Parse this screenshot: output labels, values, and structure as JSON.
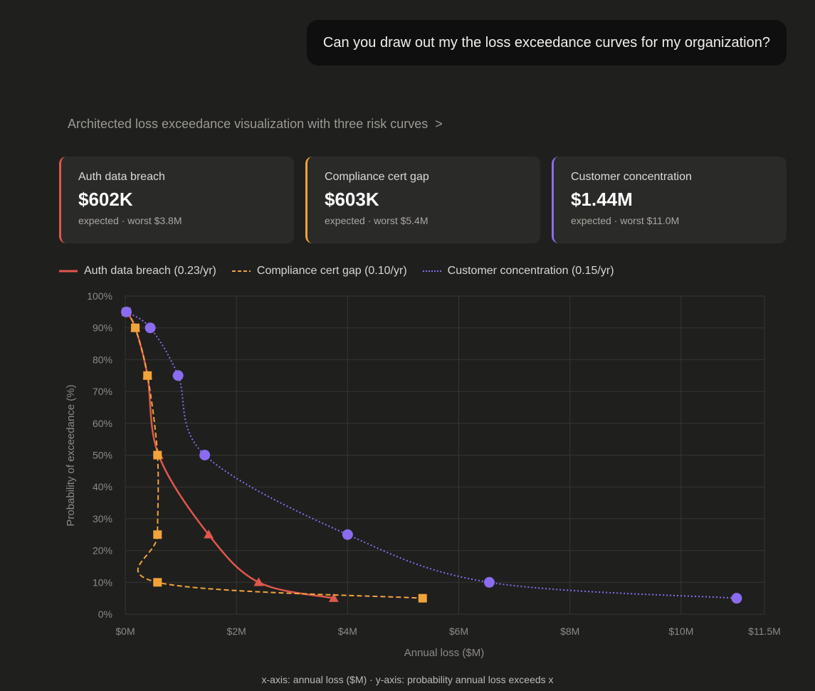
{
  "user_message": "Can you draw out my the loss exceedance curves for my organization?",
  "thinking_summary": "Architected loss exceedance visualization with three risk curves",
  "thinking_chevron": ">",
  "cards": [
    {
      "title": "Auth data breach",
      "value": "$602K",
      "subtitle": "expected · worst $3.8M",
      "color": "#e0574b"
    },
    {
      "title": "Compliance cert gap",
      "value": "$603K",
      "subtitle": "expected · worst $5.4M",
      "color": "#f2a33a"
    },
    {
      "title": "Customer concentration",
      "value": "$1.44M",
      "subtitle": "expected · worst $11.0M",
      "color": "#8b6cf0"
    }
  ],
  "legend": [
    {
      "label": "Auth data breach (0.23/yr)",
      "color": "#e0574b",
      "dash": "solid"
    },
    {
      "label": "Compliance cert gap (0.10/yr)",
      "color": "#f2a33a",
      "dash": "dashed"
    },
    {
      "label": "Customer concentration (0.15/yr)",
      "color": "#8b6cf0",
      "dash": "dotted"
    }
  ],
  "caption": "x-axis: annual loss ($M) · y-axis: probability annual loss exceeds x",
  "chart_data": {
    "type": "line",
    "xlabel": "Annual loss ($M)",
    "ylabel": "Probability of exceedance (%)",
    "xlim": [
      0,
      11.5
    ],
    "ylim": [
      0,
      100
    ],
    "x_ticks": [
      0,
      2,
      4,
      6,
      8,
      10,
      11.5
    ],
    "x_tick_labels": [
      "$0M",
      "$2M",
      "$4M",
      "$6M",
      "$8M",
      "$10M",
      "$11.5M"
    ],
    "y_ticks": [
      0,
      10,
      20,
      30,
      40,
      50,
      60,
      70,
      80,
      90,
      100
    ],
    "y_tick_labels": [
      "0%",
      "10%",
      "20%",
      "30%",
      "40%",
      "50%",
      "60%",
      "70%",
      "80%",
      "90%",
      "100%"
    ],
    "grid": true,
    "series": [
      {
        "name": "Auth data breach (0.23/yr)",
        "color": "#e0574b",
        "dash": "solid",
        "marker": "triangle",
        "x": [
          0.02,
          0.18,
          0.4,
          0.6,
          1.5,
          2.4,
          3.75
        ],
        "y": [
          95,
          90,
          75,
          50,
          25,
          10,
          5
        ]
      },
      {
        "name": "Compliance cert gap (0.10/yr)",
        "color": "#f2a33a",
        "dash": "dashed",
        "marker": "square",
        "x": [
          0.02,
          0.18,
          0.4,
          0.58,
          0.58,
          0.58,
          5.35
        ],
        "y": [
          95,
          90,
          75,
          50,
          25,
          10,
          5
        ]
      },
      {
        "name": "Customer concentration (0.15/yr)",
        "color": "#8b6cf0",
        "dash": "dotted",
        "marker": "circle",
        "x": [
          0.02,
          0.45,
          0.95,
          1.43,
          4.0,
          6.55,
          11.0
        ],
        "y": [
          95,
          90,
          75,
          50,
          25,
          10,
          5
        ]
      }
    ]
  }
}
